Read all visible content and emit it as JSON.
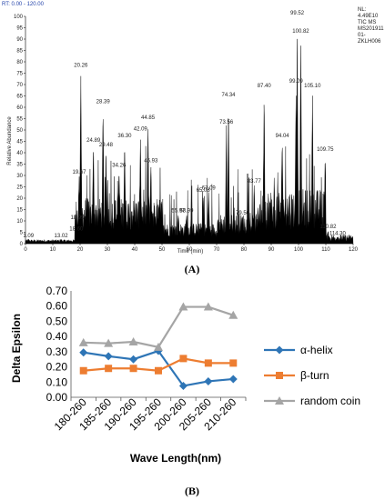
{
  "chart_data": [
    {
      "type": "line",
      "header": "RT: 0.00 - 120.00",
      "nl_block": [
        "NL:",
        "4.49E10",
        "TIC MS",
        "MS201911",
        "01-",
        "ZKLH006"
      ],
      "xlabel": "Time (min)",
      "ylabel": "Relative Abundance",
      "xlim": [
        0,
        120
      ],
      "ylim": [
        0,
        100
      ],
      "xticks": [
        "0",
        "10",
        "20",
        "30",
        "40",
        "50",
        "60",
        "70",
        "80",
        "90",
        "100",
        "110",
        "120"
      ],
      "yticks": [
        "0",
        "5",
        "10",
        "15",
        "20",
        "25",
        "30",
        "35",
        "40",
        "45",
        "50",
        "55",
        "60",
        "65",
        "70",
        "75",
        "80",
        "85",
        "90",
        "95",
        "100"
      ],
      "peak_labels": [
        {
          "x": 1.09,
          "y": 2,
          "text": "1.09"
        },
        {
          "x": 13.02,
          "y": 2,
          "text": "13.02"
        },
        {
          "x": 18.6,
          "y": 5,
          "text": "18.60"
        },
        {
          "x": 18.99,
          "y": 10,
          "text": "18.99"
        },
        {
          "x": 19.67,
          "y": 30,
          "text": "19.67"
        },
        {
          "x": 20.26,
          "y": 77,
          "text": "20.26"
        },
        {
          "x": 24.89,
          "y": 44,
          "text": "24.89"
        },
        {
          "x": 28.39,
          "y": 61,
          "text": "28.39"
        },
        {
          "x": 29.48,
          "y": 42,
          "text": "29.48"
        },
        {
          "x": 34.26,
          "y": 33,
          "text": "34.26"
        },
        {
          "x": 36.3,
          "y": 46,
          "text": "36.30"
        },
        {
          "x": 42.09,
          "y": 49,
          "text": "42.09"
        },
        {
          "x": 44.85,
          "y": 54,
          "text": "44.85"
        },
        {
          "x": 45.93,
          "y": 35,
          "text": "45.93"
        },
        {
          "x": 55.97,
          "y": 13,
          "text": "55.97"
        },
        {
          "x": 58.99,
          "y": 13,
          "text": "58.99"
        },
        {
          "x": 65.08,
          "y": 22,
          "text": "65.08"
        },
        {
          "x": 67.09,
          "y": 23,
          "text": "67.09"
        },
        {
          "x": 73.56,
          "y": 52,
          "text": "73.56"
        },
        {
          "x": 74.34,
          "y": 64,
          "text": "74.34"
        },
        {
          "x": 79.5,
          "y": 12,
          "text": "79.50"
        },
        {
          "x": 83.77,
          "y": 26,
          "text": "83.77"
        },
        {
          "x": 87.4,
          "y": 68,
          "text": "87.40"
        },
        {
          "x": 94.04,
          "y": 46,
          "text": "94.04"
        },
        {
          "x": 99.09,
          "y": 70,
          "text": "99.09"
        },
        {
          "x": 99.52,
          "y": 100,
          "text": "99.52"
        },
        {
          "x": 100.82,
          "y": 92,
          "text": "100.82"
        },
        {
          "x": 105.1,
          "y": 68,
          "text": "105.10"
        },
        {
          "x": 109.75,
          "y": 40,
          "text": "109.75"
        },
        {
          "x": 110.82,
          "y": 6,
          "text": "110.82"
        },
        {
          "x": 114.3,
          "y": 3,
          "text": "114.30"
        }
      ],
      "panel_label": "(A)"
    },
    {
      "type": "line",
      "xlabel": "Wave Length(nm)",
      "ylabel": "Delta Epsilon",
      "ylim": [
        0,
        0.7
      ],
      "yticks": [
        "0.00",
        "0.10",
        "0.20",
        "0.30",
        "0.40",
        "0.50",
        "0.60",
        "0.70"
      ],
      "categories": [
        "180-260",
        "185-260",
        "190-260",
        "195-260",
        "200-260",
        "205-260",
        "210-260"
      ],
      "series": [
        {
          "name": "α-helix",
          "color": "#2e75b6",
          "marker": "diamond",
          "values": [
            0.295,
            0.27,
            0.25,
            0.305,
            0.075,
            0.105,
            0.12
          ]
        },
        {
          "name": "β-turn",
          "color": "#ed7d31",
          "marker": "square",
          "values": [
            0.175,
            0.19,
            0.19,
            0.175,
            0.255,
            0.225,
            0.225
          ]
        },
        {
          "name": "random coin",
          "color": "#a5a5a5",
          "marker": "triangle",
          "values": [
            0.36,
            0.355,
            0.365,
            0.33,
            0.595,
            0.595,
            0.54
          ]
        }
      ],
      "legend": "right",
      "panel_label": "(B)"
    }
  ]
}
